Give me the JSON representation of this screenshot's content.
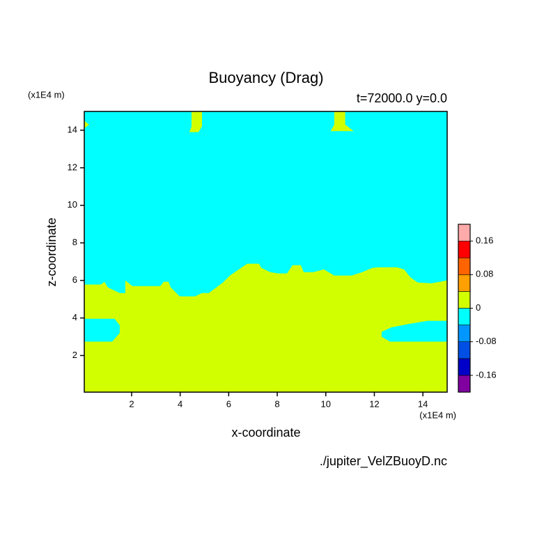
{
  "chart_data": {
    "type": "contour",
    "title": "Buoyancy (Drag)",
    "subtitle": "t=72000.0 y=0.0",
    "x_label": "x-coordinate",
    "y_label": "z-coordinate",
    "x_unit": "(x1E4 m)",
    "y_unit": "(x1E4 m)",
    "footer": "./jupiter_VelZBuoyD.nc",
    "xlim": [
      0.05,
      15
    ],
    "ylim": [
      0.05,
      15
    ],
    "xticks": [
      2,
      4,
      6,
      8,
      10,
      12,
      14
    ],
    "yticks": [
      2,
      4,
      6,
      8,
      10,
      12,
      14
    ],
    "fill_color": "#d2ff00",
    "regions": [
      {
        "color": "#00ffff",
        "x": [
          0.05,
          0.05,
          0.74,
          0.88,
          1.02,
          1.51,
          1.74,
          1.74,
          2.03,
          3.18,
          3.32,
          3.52,
          3.61,
          3.98,
          4.61,
          4.9,
          5.18,
          5.76,
          6.05,
          6.76,
          7.25,
          7.34,
          7.71,
          8.05,
          8.4,
          8.63,
          8.97,
          9.09,
          9.49,
          9.92,
          10.35,
          11.07,
          11.5,
          11.93,
          12.22,
          12.93,
          13.22,
          13.5,
          13.79,
          14.36,
          15,
          15
        ],
        "y": [
          15,
          5.78,
          5.78,
          5.93,
          5.63,
          5.33,
          5.33,
          6.0,
          5.7,
          5.7,
          5.93,
          5.93,
          5.63,
          5.15,
          5.15,
          5.33,
          5.33,
          5.89,
          6.26,
          6.89,
          6.89,
          6.67,
          6.44,
          6.37,
          6.37,
          6.81,
          6.81,
          6.44,
          6.44,
          6.59,
          6.26,
          6.26,
          6.44,
          6.67,
          6.7,
          6.7,
          6.59,
          6.15,
          5.89,
          5.85,
          6.0,
          15
        ]
      },
      {
        "color": "#d2ff00",
        "x": [
          4.47,
          4.9,
          4.9,
          4.75,
          4.38,
          4.47
        ],
        "y": [
          15,
          15,
          14.2,
          13.9,
          13.9,
          14.2
        ]
      },
      {
        "color": "#d2ff00",
        "x": [
          10.35,
          10.8,
          10.8,
          11.15,
          10.2,
          10.35
        ],
        "y": [
          15,
          15,
          14.3,
          13.95,
          13.95,
          14.3
        ]
      },
      {
        "color": "#d2ff00",
        "x": [
          0.05,
          0.25,
          0.05
        ],
        "y": [
          14.5,
          14.3,
          14.1
        ]
      },
      {
        "color": "#00ffff",
        "x": [
          0.05,
          1.3,
          1.51,
          1.51,
          1.2,
          0.05
        ],
        "y": [
          3.96,
          3.96,
          3.6,
          3.2,
          2.74,
          2.74
        ]
      },
      {
        "color": "#00ffff",
        "x": [
          12.3,
          12.7,
          13.5,
          14.2,
          15,
          15,
          12.65,
          12.3
        ],
        "y": [
          3.26,
          3.5,
          3.7,
          3.85,
          3.85,
          2.74,
          2.74,
          3.0
        ]
      }
    ],
    "colorbar": {
      "range": [
        -0.2,
        0.2
      ],
      "colors": [
        "#8000a0",
        "#0000c8",
        "#0050e6",
        "#0096ff",
        "#00ffff",
        "#d2ff00",
        "#ffa000",
        "#ff6400",
        "#ff0000",
        "#ffaaaa"
      ],
      "ticks": [
        -0.16,
        -0.08,
        0,
        0.08,
        0.16
      ]
    }
  }
}
